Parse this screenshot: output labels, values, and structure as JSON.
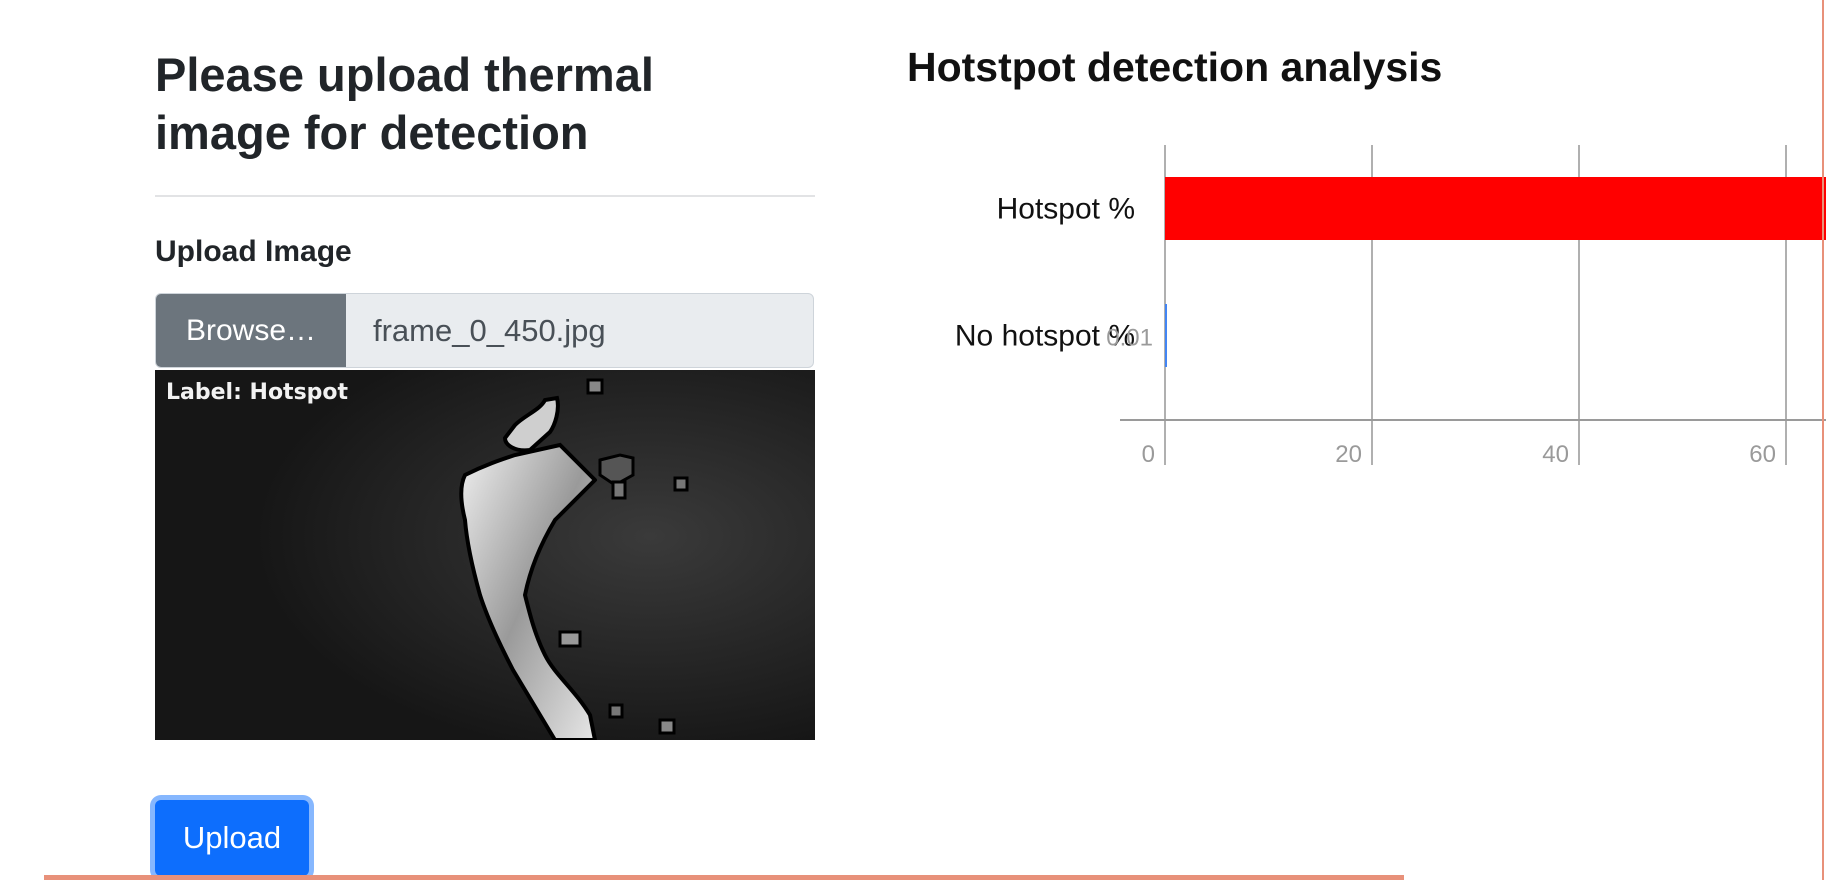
{
  "form": {
    "title": "Please upload thermal image for detection",
    "upload_label": "Upload Image",
    "browse_label": "Browse…",
    "file_name": "frame_0_450.jpg",
    "preview_label": "Label: Hotspot",
    "upload_button": "Upload"
  },
  "chart_title": "Hotstpot detection analysis",
  "colors": {
    "hotspot_bar": "#ff0000",
    "no_hotspot_bar": "#4285f4",
    "upload_button": "#0d6efd",
    "browse_button": "#6c757d"
  },
  "chart_data": {
    "type": "bar",
    "orientation": "horizontal",
    "categories": [
      "Hotspot %",
      "No hotspot %"
    ],
    "values": [
      99.99,
      0.01
    ],
    "data_labels": [
      "",
      "0.01"
    ],
    "xticks": [
      "0",
      "20",
      "40",
      "60"
    ],
    "xlim": [
      0,
      100
    ],
    "grid": true,
    "title": "Hotstpot detection analysis"
  }
}
